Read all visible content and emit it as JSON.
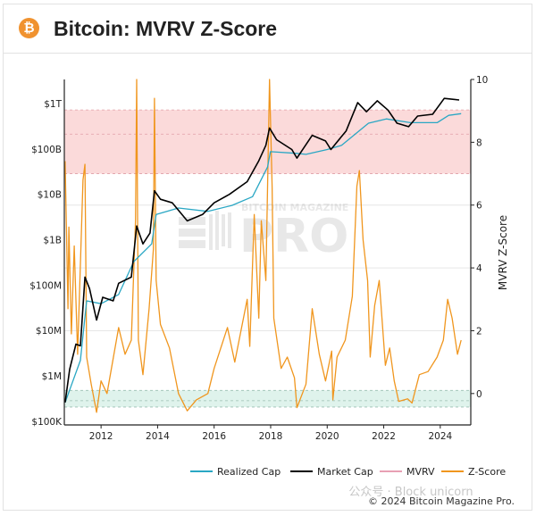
{
  "header": {
    "title": "Bitcoin: MVRV Z-Score",
    "icon": "bitcoin-icon",
    "icon_glyph": "₿"
  },
  "footer": {
    "copyright": "© 2024 Bitcoin Magazine Pro.",
    "overlay_watermark": "公众号 · Block unicorn"
  },
  "watermark": {
    "top": "BITCOIN MAGAZINE",
    "main": "PRO"
  },
  "chart_data": {
    "type": "line",
    "title": "",
    "xlabel": "",
    "ylabel_left": "",
    "ylabel_right": "MVRV Z-Score",
    "x_ticks": [
      "2012",
      "2014",
      "2016",
      "2018",
      "2020",
      "2022",
      "2024"
    ],
    "x_range": [
      2010.7,
      2025.08
    ],
    "y_left_ticks": [
      "$100K",
      "$1M",
      "$10M",
      "$100M",
      "$1B",
      "$10B",
      "$100B",
      "$1T"
    ],
    "y_left_scale": "log",
    "y_left_range_usd": [
      83000,
      3400000000000
    ],
    "y_right_ticks": [
      "0",
      "2",
      "4",
      "6",
      "8",
      "10"
    ],
    "y_right_range": [
      -1,
      10
    ],
    "grid": true,
    "legend_placement": "bottom-right",
    "bands": [
      {
        "name": "top zone",
        "axis": "right",
        "from": 7.0,
        "to": 9.03,
        "mid_line": 8.26,
        "color": "#fbdada"
      },
      {
        "name": "bottom zone",
        "axis": "right",
        "from": -0.43,
        "to": 0.1,
        "mid_line": -0.23,
        "color": "#dff3ec"
      }
    ],
    "series": [
      {
        "name": "Realized Cap",
        "axis": "left",
        "color": "#2aa7c4",
        "x": [
          2010.73,
          2011.27,
          2011.49,
          2012.0,
          2012.62,
          2013.16,
          2013.79,
          2013.95,
          2014.74,
          2015.78,
          2016.63,
          2017.36,
          2017.89,
          2017.99,
          2018.93,
          2019.25,
          2020.0,
          2020.51,
          2021.46,
          2022.09,
          2022.94,
          2023.89,
          2024.3,
          2024.74
        ],
        "y": [
          260000.0,
          2200000.0,
          45000000.0,
          39000000.0,
          62000000.0,
          330000000.0,
          810000000.0,
          3600000000.0,
          5000000000.0,
          4200000000.0,
          5700000000.0,
          8900000000.0,
          40000000000.0,
          87000000000.0,
          80000000000.0,
          76000000000.0,
          97000000000.0,
          120000000000.0,
          370000000000.0,
          460000000000.0,
          380000000000.0,
          380000000000.0,
          550000000000.0,
          600000000000.0
        ]
      },
      {
        "name": "Market Cap",
        "axis": "left",
        "color": "#000000",
        "x": [
          2010.73,
          2010.89,
          2011.11,
          2011.27,
          2011.43,
          2011.59,
          2011.84,
          2012.06,
          2012.43,
          2012.62,
          2013.07,
          2013.26,
          2013.48,
          2013.73,
          2013.89,
          2014.1,
          2014.52,
          2015.05,
          2015.59,
          2016.0,
          2016.54,
          2017.17,
          2017.58,
          2017.83,
          2017.96,
          2018.21,
          2018.75,
          2018.93,
          2019.47,
          2019.94,
          2020.13,
          2020.67,
          2021.08,
          2021.39,
          2021.77,
          2022.15,
          2022.47,
          2022.88,
          2023.2,
          2023.73,
          2024.14,
          2024.67
        ],
        "y": [
          260000.0,
          1400000.0,
          5000000.0,
          4600000.0,
          150000000.0,
          84000000.0,
          17000000.0,
          54000000.0,
          45000000.0,
          110000000.0,
          150000000.0,
          2000000000.0,
          810000000.0,
          1400000000.0,
          12000000000.0,
          7800000000.0,
          6500000000.0,
          2600000000.0,
          3600000000.0,
          6500000000.0,
          10000000000.0,
          19000000000.0,
          55000000000.0,
          120000000000.0,
          290000000000.0,
          160000000000.0,
          97000000000.0,
          63000000000.0,
          200000000000.0,
          150000000000.0,
          97000000000.0,
          250000000000.0,
          1050000000000.0,
          660000000000.0,
          1150000000000.0,
          720000000000.0,
          370000000000.0,
          310000000000.0,
          530000000000.0,
          580000000000.0,
          1300000000000.0,
          1200000000000.0
        ]
      },
      {
        "name": "MVRV",
        "axis": "right",
        "color": "#e8a0b4",
        "x": [],
        "y": []
      },
      {
        "name": "Z-Score",
        "axis": "right",
        "color": "#f0961e",
        "x": [
          2010.73,
          2010.83,
          2010.86,
          2010.95,
          2011.05,
          2011.17,
          2011.36,
          2011.43,
          2011.49,
          2011.65,
          2011.84,
          2012.0,
          2012.21,
          2012.62,
          2012.85,
          2013.07,
          2013.22,
          2013.26,
          2013.32,
          2013.48,
          2013.7,
          2013.85,
          2013.89,
          2013.95,
          2014.1,
          2014.42,
          2014.74,
          2015.05,
          2015.37,
          2015.78,
          2016.0,
          2016.47,
          2016.73,
          2017.17,
          2017.26,
          2017.42,
          2017.58,
          2017.67,
          2017.83,
          2017.96,
          2018.05,
          2018.11,
          2018.37,
          2018.59,
          2018.84,
          2018.93,
          2019.25,
          2019.47,
          2019.72,
          2019.94,
          2020.16,
          2020.2,
          2020.35,
          2020.64,
          2020.89,
          2021.05,
          2021.14,
          2021.27,
          2021.43,
          2021.52,
          2021.68,
          2021.84,
          2022.06,
          2022.21,
          2022.37,
          2022.53,
          2022.85,
          2023.0,
          2023.26,
          2023.57,
          2023.89,
          2024.11,
          2024.26,
          2024.42,
          2024.61,
          2024.74
        ],
        "y": [
          7.4,
          2.7,
          5.3,
          1.9,
          4.7,
          1.25,
          6.8,
          7.3,
          1.16,
          0.3,
          -0.6,
          0.4,
          0,
          2.1,
          1.25,
          1.7,
          5.5,
          10,
          1.7,
          0.6,
          2.7,
          4.6,
          9.4,
          3.6,
          2.2,
          1.45,
          0,
          -0.55,
          -0.2,
          0,
          0.8,
          2.1,
          1.0,
          3.0,
          1.5,
          5.7,
          2.4,
          5.5,
          3.6,
          10,
          6.6,
          2.4,
          0.8,
          1.16,
          0.5,
          -0.45,
          0.3,
          2.7,
          1.25,
          0.4,
          1.35,
          -0.2,
          1.16,
          1.7,
          3.1,
          6.6,
          7.1,
          4.9,
          3.6,
          1.16,
          2.8,
          3.6,
          0.9,
          1.45,
          0.4,
          -0.25,
          -0.17,
          -0.3,
          0.6,
          0.7,
          1.16,
          1.7,
          3.0,
          2.4,
          1.25,
          1.7
        ]
      }
    ]
  }
}
